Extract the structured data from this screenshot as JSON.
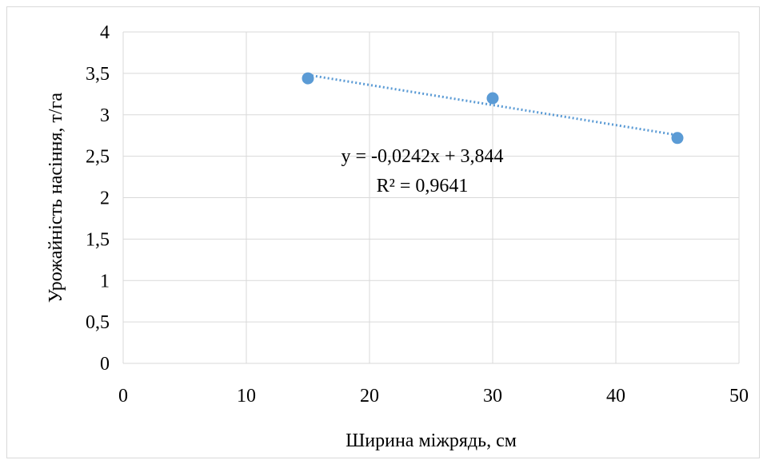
{
  "chart_data": {
    "type": "scatter",
    "title": "",
    "xlabel": "Ширина міжрядь, см",
    "ylabel": "Урожайність насіння, т/га",
    "xlim": [
      0,
      50
    ],
    "ylim": [
      0,
      4
    ],
    "x_ticks": [
      0,
      10,
      20,
      30,
      40,
      50
    ],
    "y_ticks": [
      0,
      0.5,
      1,
      1.5,
      2,
      2.5,
      3,
      3.5,
      4
    ],
    "x_tick_labels": [
      "0",
      "10",
      "20",
      "30",
      "40",
      "50"
    ],
    "y_tick_labels": [
      "0",
      "0,5",
      "1",
      "1,5",
      "2",
      "2,5",
      "3",
      "3,5",
      "4"
    ],
    "grid": true,
    "series": [
      {
        "x": [
          15,
          30,
          45
        ],
        "y": [
          3.44,
          3.2,
          2.72
        ],
        "color": "#5b9bd5"
      }
    ],
    "trendline": {
      "type": "linear",
      "slope": -0.0242,
      "intercept": 3.844,
      "x_range": [
        15,
        45
      ],
      "style": "dotted",
      "color": "#5b9bd5",
      "equation": "y = -0,0242x + 3,844",
      "r_squared": "R² = 0,9641"
    }
  }
}
